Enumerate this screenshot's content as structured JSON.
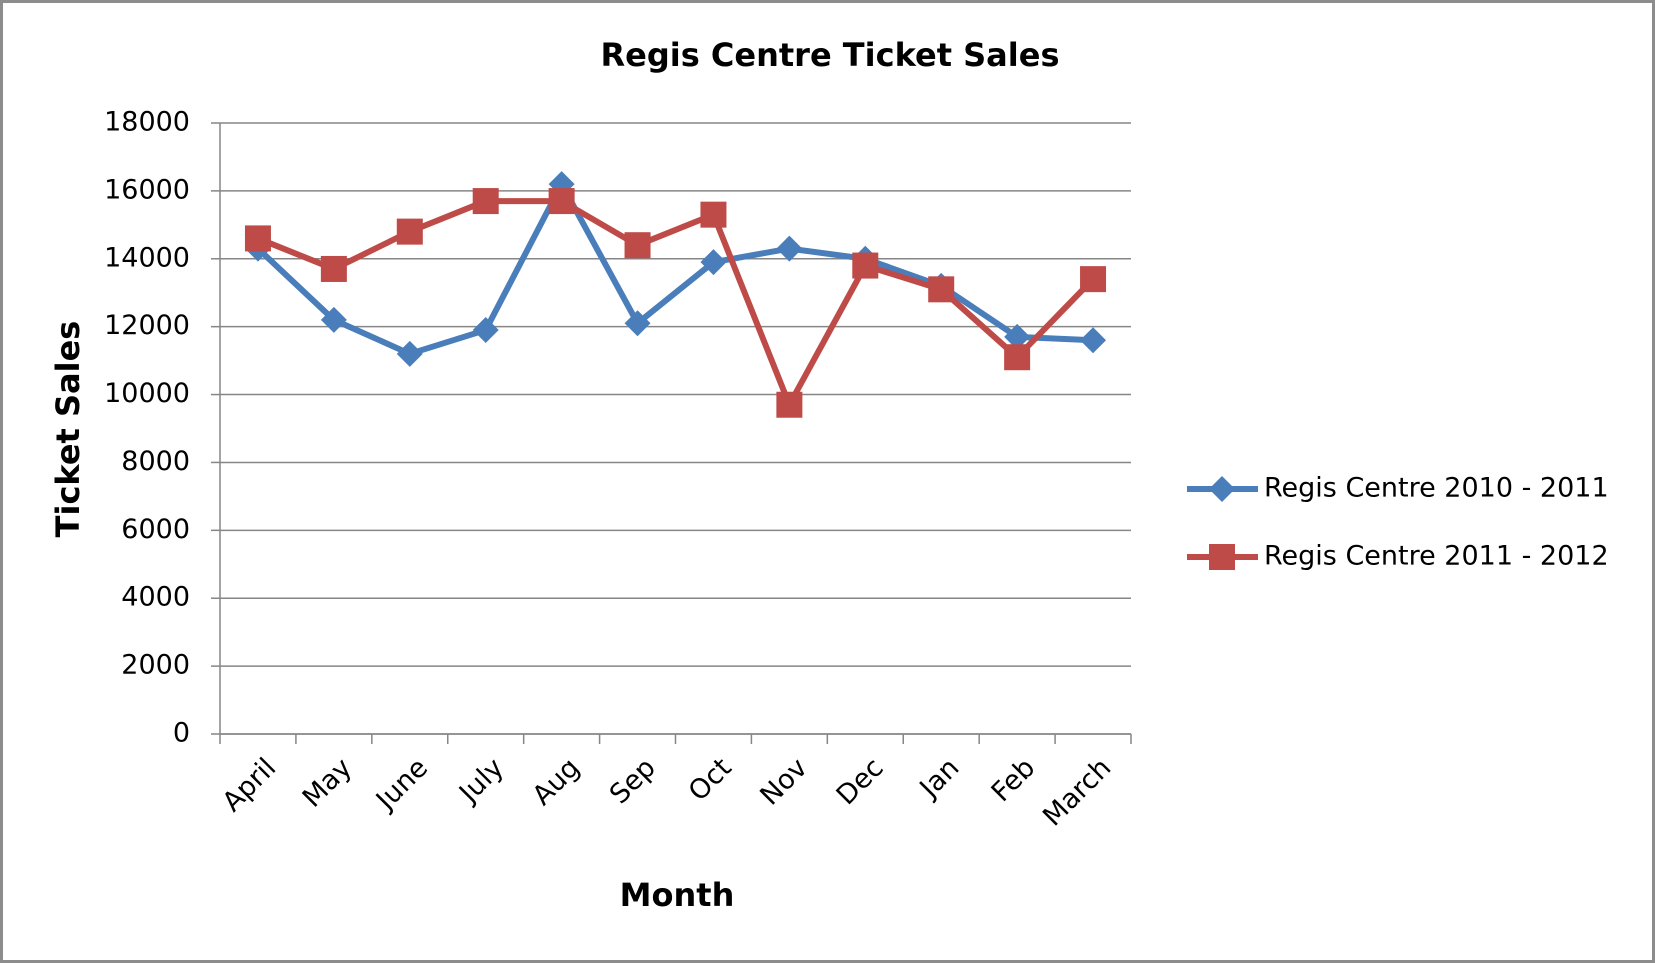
{
  "chart_data": {
    "type": "line",
    "title": "Regis Centre Ticket Sales",
    "x_label": "Month",
    "y_label": "Ticket Sales",
    "categories": [
      "April",
      "May",
      "June",
      "July",
      "Aug",
      "Sep",
      "Oct",
      "Nov",
      "Dec",
      "Jan",
      "Feb",
      "March"
    ],
    "series": [
      {
        "name": "Regis Centre 2010 - 2011",
        "color": "#4a7ebb",
        "marker": "diamond",
        "values": [
          14300,
          12200,
          11200,
          11900,
          16200,
          12100,
          13900,
          14300,
          14000,
          13200,
          11700,
          11600
        ]
      },
      {
        "name": "Regis Centre 2011 - 2012",
        "color": "#be4b48",
        "marker": "square",
        "values": [
          14600,
          13700,
          14800,
          15700,
          15700,
          14400,
          15300,
          9700,
          13800,
          13100,
          11100,
          13400
        ]
      }
    ],
    "ylim": [
      0,
      18000
    ],
    "yticks": [
      0,
      2000,
      4000,
      6000,
      8000,
      10000,
      12000,
      14000,
      16000,
      18000
    ],
    "grid": true,
    "legend": "right"
  }
}
